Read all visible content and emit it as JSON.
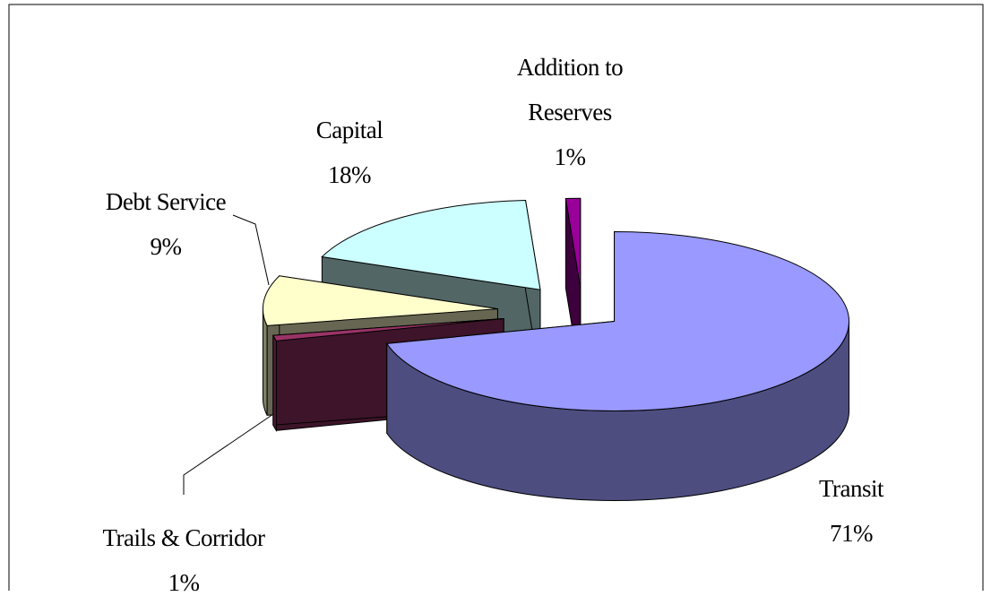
{
  "chart_data": {
    "type": "pie",
    "categories": [
      "Transit",
      "Trails & Corridor",
      "Debt Service",
      "Capital",
      "Addition to Reserves"
    ],
    "values": [
      71,
      1,
      9,
      18,
      1
    ],
    "value_labels": [
      "71%",
      "1%",
      "9%",
      "18%",
      "1%"
    ],
    "colors": [
      "#9999ff",
      "#993366",
      "#ffffcc",
      "#ccffff",
      "#990099"
    ]
  }
}
